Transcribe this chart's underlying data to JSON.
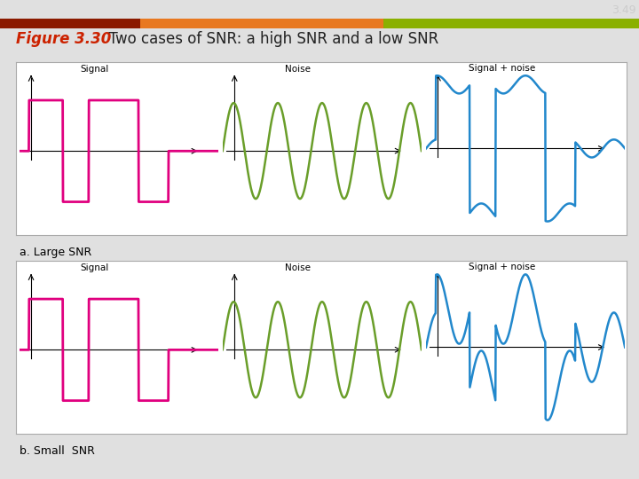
{
  "title_num": "3.49",
  "title_num_color": "#444444",
  "fig_label": "Figure 3.30",
  "fig_label_color": "#cc2200",
  "fig_title": "  Two cases of SNR: a high SNR and a low SNR",
  "fig_title_color": "#222222",
  "header_bar_color": "#5c1a00",
  "subheader_colors": [
    "#8B1A00",
    "#e87820",
    "#8ab000"
  ],
  "footer_bar_color": "#5c1a00",
  "signal_color": "#e0007f",
  "noise_color": "#6a9e2a",
  "signal_noise_color": "#2288cc",
  "box_bg": "#ffffff",
  "box_edge": "#aaaaaa",
  "background_color": "#e0e0e0",
  "label_a": "a. Large SNR",
  "label_b": "b. Small  SNR",
  "sep_color": "#8B1A00"
}
